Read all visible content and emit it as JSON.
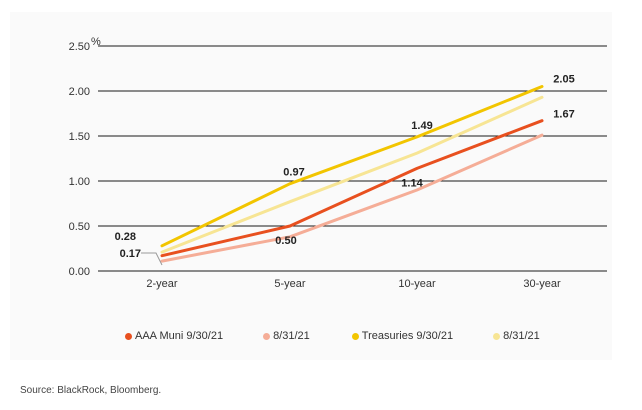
{
  "chart_data": {
    "type": "line",
    "categories": [
      "2-year",
      "5-year",
      "10-year",
      "30-year"
    ],
    "yunit": "%",
    "ylim": [
      0,
      2.5
    ],
    "yticks": [
      "0.00",
      "0.50",
      "1.00",
      "1.50",
      "2.00",
      "2.50"
    ],
    "grid": true,
    "series": [
      {
        "name": "AAA Muni 9/30/21",
        "color": "#e8501f",
        "values": [
          0.17,
          0.5,
          1.14,
          1.67
        ]
      },
      {
        "name": "8/31/21",
        "color": "#f5ad97",
        "values": [
          0.11,
          0.38,
          0.9,
          1.51
        ]
      },
      {
        "name": "Treasuries 9/30/21",
        "color": "#f2c500",
        "values": [
          0.28,
          0.97,
          1.49,
          2.05
        ]
      },
      {
        "name": "8/31/21",
        "color": "#f7e594",
        "values": [
          0.21,
          0.77,
          1.31,
          1.93
        ]
      }
    ],
    "data_labels": [
      {
        "text": "0.28",
        "series": 2,
        "index": 0
      },
      {
        "text": "0.17",
        "series": 0,
        "index": 0
      },
      {
        "text": "0.97",
        "series": 2,
        "index": 1
      },
      {
        "text": "0.50",
        "series": 0,
        "index": 1
      },
      {
        "text": "1.49",
        "series": 2,
        "index": 2
      },
      {
        "text": "1.14",
        "series": 0,
        "index": 2
      },
      {
        "text": "2.05",
        "series": 2,
        "index": 3
      },
      {
        "text": "1.67",
        "series": 0,
        "index": 3
      }
    ]
  },
  "source": "Source: BlackRock, Bloomberg."
}
